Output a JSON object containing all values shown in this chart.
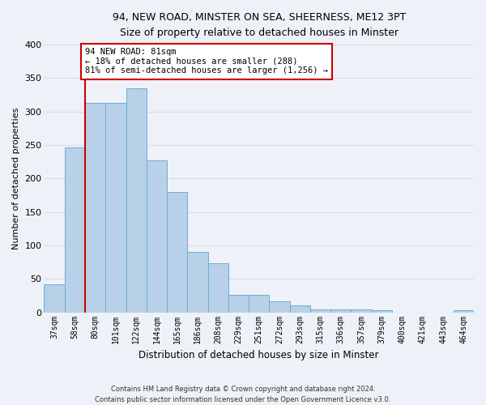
{
  "title1": "94, NEW ROAD, MINSTER ON SEA, SHEERNESS, ME12 3PT",
  "title2": "Size of property relative to detached houses in Minster",
  "xlabel": "Distribution of detached houses by size in Minster",
  "ylabel": "Number of detached properties",
  "categories": [
    "37sqm",
    "58sqm",
    "80sqm",
    "101sqm",
    "122sqm",
    "144sqm",
    "165sqm",
    "186sqm",
    "208sqm",
    "229sqm",
    "251sqm",
    "272sqm",
    "293sqm",
    "315sqm",
    "336sqm",
    "357sqm",
    "379sqm",
    "400sqm",
    "421sqm",
    "443sqm",
    "464sqm"
  ],
  "values": [
    42,
    246,
    313,
    313,
    335,
    227,
    180,
    90,
    73,
    26,
    26,
    16,
    10,
    4,
    4,
    4,
    3,
    0,
    0,
    0,
    3
  ],
  "bar_color": "#b8d0e8",
  "bar_edge_color": "#6baed6",
  "vline_index": 2,
  "vline_color": "#cc0000",
  "annotation_text": "94 NEW ROAD: 81sqm\n← 18% of detached houses are smaller (288)\n81% of semi-detached houses are larger (1,256) →",
  "annotation_box_color": "#ffffff",
  "annotation_box_edge_color": "#cc0000",
  "footer": "Contains HM Land Registry data © Crown copyright and database right 2024.\nContains public sector information licensed under the Open Government Licence v3.0.",
  "ylim": [
    0,
    400
  ],
  "yticks": [
    0,
    50,
    100,
    150,
    200,
    250,
    300,
    350,
    400
  ],
  "background_color": "#eef2f8",
  "grid_color": "#d8dde8",
  "fig_width": 6.0,
  "fig_height": 5.0
}
